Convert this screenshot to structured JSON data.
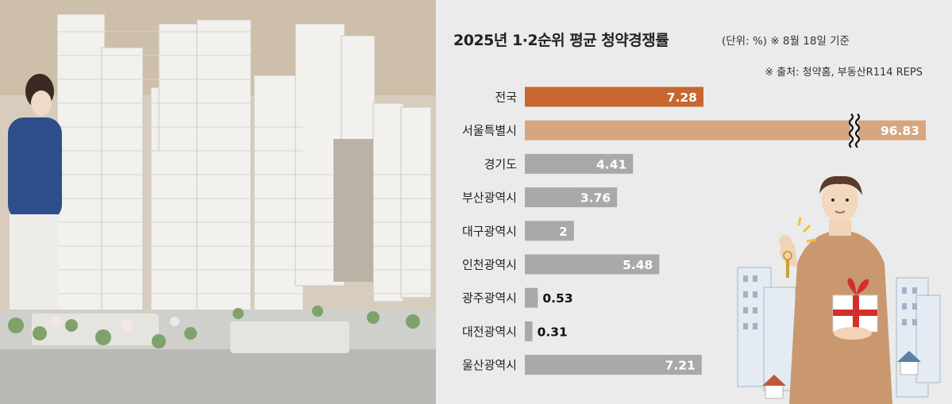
{
  "title": "2025년 1·2순위 평균 청약경쟁률",
  "unit_note": "(단위: %) ※ 8월 18일 기준",
  "source": "※ 출처: 청약홈, 부동산R114 REPS",
  "colors": {
    "highlight": "#c7672f",
    "seoul": "#d6a67f",
    "default": "#a9a9ab",
    "background": "#ebebeb"
  },
  "chart_data": {
    "type": "bar",
    "orientation": "horizontal",
    "axis_break": true,
    "categories": [
      "전국",
      "서울특별시",
      "경기도",
      "부산광역시",
      "대구광역시",
      "인천광역시",
      "광주광역시",
      "대전광역시",
      "울산광역시"
    ],
    "values": [
      7.28,
      96.83,
      4.41,
      3.76,
      2,
      5.48,
      0.53,
      0.31,
      7.21
    ],
    "labels": [
      "7.28",
      "96.83",
      "4.41",
      "3.76",
      "2",
      "5.48",
      "0.53",
      "0.31",
      "7.21"
    ],
    "bar_colors": [
      "highlight",
      "seoul",
      "default",
      "default",
      "default",
      "default",
      "default",
      "default",
      "default"
    ]
  }
}
